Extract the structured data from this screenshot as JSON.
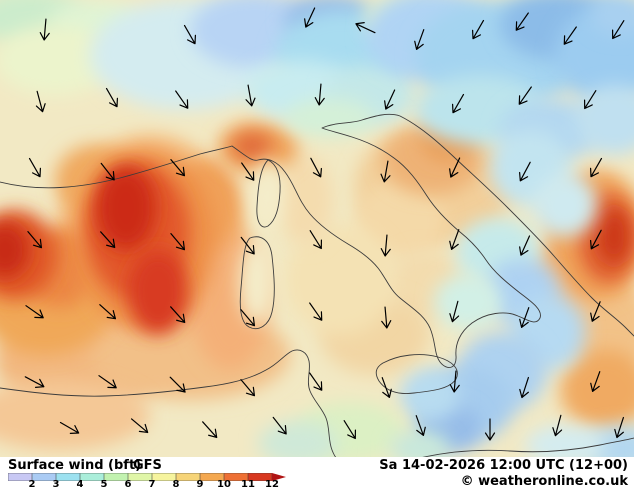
{
  "footer": {
    "parameter": "Surface wind (bft)",
    "model": "GFS",
    "datetime": "Sa 14-02-2026 12:00 UTC (12+00)",
    "copyright": "© weatheronline.co.uk",
    "legend": {
      "ticks": [
        "2",
        "3",
        "4",
        "5",
        "6",
        "7",
        "8",
        "9",
        "10",
        "11",
        "12"
      ],
      "cell_colors": [
        "#c8c8f4",
        "#aacbf4",
        "#9ce1f0",
        "#aaeeda",
        "#c2f2b0",
        "#e0f6a8",
        "#f6f49e",
        "#f6d478",
        "#f4a850",
        "#ee7034",
        "#d83820"
      ],
      "arrow_color": "#b01414"
    }
  },
  "map": {
    "base_color": "#f2e9c4",
    "coast_color": "#3c3c3c",
    "arrow_color": "#000000",
    "blobs": [
      [
        150,
        250,
        95,
        115,
        "#f4b878"
      ],
      [
        80,
        360,
        85,
        50,
        "#f2b880"
      ],
      [
        190,
        355,
        100,
        45,
        "#f2c088"
      ],
      [
        60,
        415,
        90,
        35,
        "#f4c896"
      ],
      [
        230,
        300,
        40,
        70,
        "#f4b078"
      ],
      [
        205,
        205,
        35,
        45,
        "#f0a058"
      ],
      [
        95,
        180,
        40,
        35,
        "#f0aa60"
      ],
      [
        45,
        300,
        70,
        55,
        "#f0a858"
      ],
      [
        60,
        268,
        35,
        40,
        "#ec8844"
      ],
      [
        435,
        185,
        80,
        60,
        "#f2cf9a"
      ],
      [
        400,
        220,
        45,
        40,
        "#f4d9a8"
      ],
      [
        425,
        285,
        40,
        35,
        "#f3dcae"
      ],
      [
        375,
        335,
        55,
        40,
        "#f2d6a4"
      ],
      [
        340,
        280,
        55,
        55,
        "#f4e2b4"
      ],
      [
        305,
        200,
        28,
        45,
        "#f4dcae"
      ],
      [
        575,
        290,
        50,
        60,
        "#f2ba80"
      ],
      [
        612,
        330,
        40,
        50,
        "#f2c288"
      ],
      [
        605,
        390,
        45,
        40,
        "#f0aa62"
      ],
      [
        598,
        235,
        48,
        65,
        "#f0a258"
      ],
      [
        145,
        240,
        70,
        90,
        "#ee9148"
      ],
      [
        138,
        232,
        52,
        68,
        "#e2582c"
      ],
      [
        126,
        208,
        30,
        42,
        "#cc2c14"
      ],
      [
        158,
        292,
        30,
        42,
        "#d83a20"
      ],
      [
        15,
        255,
        42,
        45,
        "#e05828"
      ],
      [
        5,
        250,
        24,
        28,
        "#c82c12"
      ],
      [
        258,
        148,
        40,
        26,
        "#f0a258"
      ],
      [
        252,
        146,
        20,
        13,
        "#e06838"
      ],
      [
        432,
        160,
        50,
        35,
        "#eeb276"
      ],
      [
        448,
        140,
        26,
        20,
        "#ea9c54"
      ],
      [
        608,
        238,
        30,
        45,
        "#e06030"
      ],
      [
        614,
        236,
        16,
        28,
        "#cc3818"
      ],
      [
        30,
        18,
        55,
        28,
        "#cceccc"
      ],
      [
        95,
        22,
        45,
        22,
        "#e0f4d4"
      ],
      [
        55,
        60,
        60,
        35,
        "#ecf4cc"
      ],
      [
        185,
        55,
        95,
        55,
        "#d4ecf0"
      ],
      [
        255,
        30,
        65,
        38,
        "#b8d4f4"
      ],
      [
        330,
        20,
        45,
        25,
        "#96bce8"
      ],
      [
        345,
        55,
        70,
        45,
        "#a8dcf0"
      ],
      [
        395,
        18,
        30,
        18,
        "#e8f4c8"
      ],
      [
        300,
        90,
        55,
        30,
        "#c8ecf0"
      ],
      [
        370,
        95,
        45,
        30,
        "#c4e8e8"
      ],
      [
        430,
        35,
        65,
        45,
        "#b0d4f4"
      ],
      [
        500,
        55,
        85,
        55,
        "#a4d4f0"
      ],
      [
        560,
        25,
        60,
        35,
        "#8cbce8"
      ],
      [
        610,
        55,
        55,
        50,
        "#9cccf0"
      ],
      [
        620,
        15,
        30,
        20,
        "#a8d0f0"
      ],
      [
        480,
        110,
        65,
        35,
        "#bce4ec"
      ],
      [
        550,
        130,
        50,
        32,
        "#b4d8f0"
      ],
      [
        615,
        120,
        40,
        35,
        "#c0e0f0"
      ],
      [
        330,
        118,
        45,
        20,
        "#d4f0d8"
      ],
      [
        530,
        168,
        40,
        38,
        "#c2e4f0"
      ],
      [
        565,
        205,
        32,
        32,
        "#cfeaf0"
      ],
      [
        498,
        252,
        42,
        34,
        "#c6eaea"
      ],
      [
        522,
        292,
        38,
        34,
        "#aed2f2"
      ],
      [
        468,
        302,
        34,
        28,
        "#d2f0e6"
      ],
      [
        548,
        332,
        38,
        38,
        "#b6daf2"
      ],
      [
        502,
        372,
        45,
        40,
        "#aed2f0"
      ],
      [
        465,
        405,
        48,
        38,
        "#a6ccee"
      ],
      [
        448,
        428,
        32,
        24,
        "#96bce8"
      ],
      [
        430,
        395,
        30,
        26,
        "#b8dcf0"
      ],
      [
        268,
        195,
        16,
        35,
        "#f4edca"
      ],
      [
        257,
        282,
        18,
        42,
        "#f4edca"
      ],
      [
        622,
        448,
        40,
        22,
        "#b4d8f0"
      ],
      [
        565,
        445,
        40,
        20,
        "#d4ecf0"
      ],
      [
        350,
        432,
        55,
        30,
        "#dcf0c4"
      ],
      [
        298,
        443,
        40,
        22,
        "#cfe9d8"
      ],
      [
        420,
        448,
        30,
        18,
        "#c8e8dc"
      ]
    ],
    "arrows": [
      [
        45,
        30,
        95
      ],
      [
        190,
        35,
        60
      ],
      [
        310,
        18,
        115
      ],
      [
        365,
        28,
        205
      ],
      [
        420,
        40,
        110
      ],
      [
        478,
        30,
        120
      ],
      [
        522,
        22,
        125
      ],
      [
        570,
        36,
        125
      ],
      [
        618,
        30,
        122
      ],
      [
        40,
        102,
        75
      ],
      [
        112,
        98,
        60
      ],
      [
        182,
        100,
        55
      ],
      [
        250,
        96,
        80
      ],
      [
        320,
        95,
        95
      ],
      [
        390,
        100,
        115
      ],
      [
        458,
        104,
        120
      ],
      [
        525,
        96,
        125
      ],
      [
        590,
        100,
        122
      ],
      [
        35,
        168,
        60
      ],
      [
        108,
        172,
        52
      ],
      [
        178,
        168,
        50
      ],
      [
        248,
        172,
        55
      ],
      [
        316,
        168,
        62
      ],
      [
        386,
        172,
        100
      ],
      [
        455,
        168,
        115
      ],
      [
        525,
        172,
        118
      ],
      [
        596,
        168,
        120
      ],
      [
        35,
        240,
        50
      ],
      [
        108,
        240,
        48
      ],
      [
        178,
        242,
        50
      ],
      [
        248,
        246,
        52
      ],
      [
        316,
        240,
        58
      ],
      [
        386,
        246,
        95
      ],
      [
        455,
        240,
        110
      ],
      [
        525,
        246,
        114
      ],
      [
        596,
        240,
        118
      ],
      [
        35,
        312,
        35
      ],
      [
        108,
        312,
        42
      ],
      [
        178,
        315,
        48
      ],
      [
        248,
        318,
        50
      ],
      [
        316,
        312,
        55
      ],
      [
        386,
        318,
        85
      ],
      [
        455,
        312,
        105
      ],
      [
        525,
        318,
        110
      ],
      [
        596,
        312,
        112
      ],
      [
        35,
        382,
        28
      ],
      [
        108,
        382,
        35
      ],
      [
        178,
        385,
        45
      ],
      [
        248,
        388,
        50
      ],
      [
        316,
        382,
        55
      ],
      [
        386,
        388,
        70
      ],
      [
        455,
        382,
        95
      ],
      [
        525,
        388,
        108
      ],
      [
        596,
        382,
        110
      ],
      [
        70,
        428,
        30
      ],
      [
        140,
        426,
        40
      ],
      [
        210,
        430,
        48
      ],
      [
        280,
        426,
        52
      ],
      [
        350,
        430,
        58
      ],
      [
        420,
        426,
        70
      ],
      [
        490,
        430,
        90
      ],
      [
        558,
        426,
        105
      ],
      [
        620,
        428,
        108
      ]
    ]
  }
}
